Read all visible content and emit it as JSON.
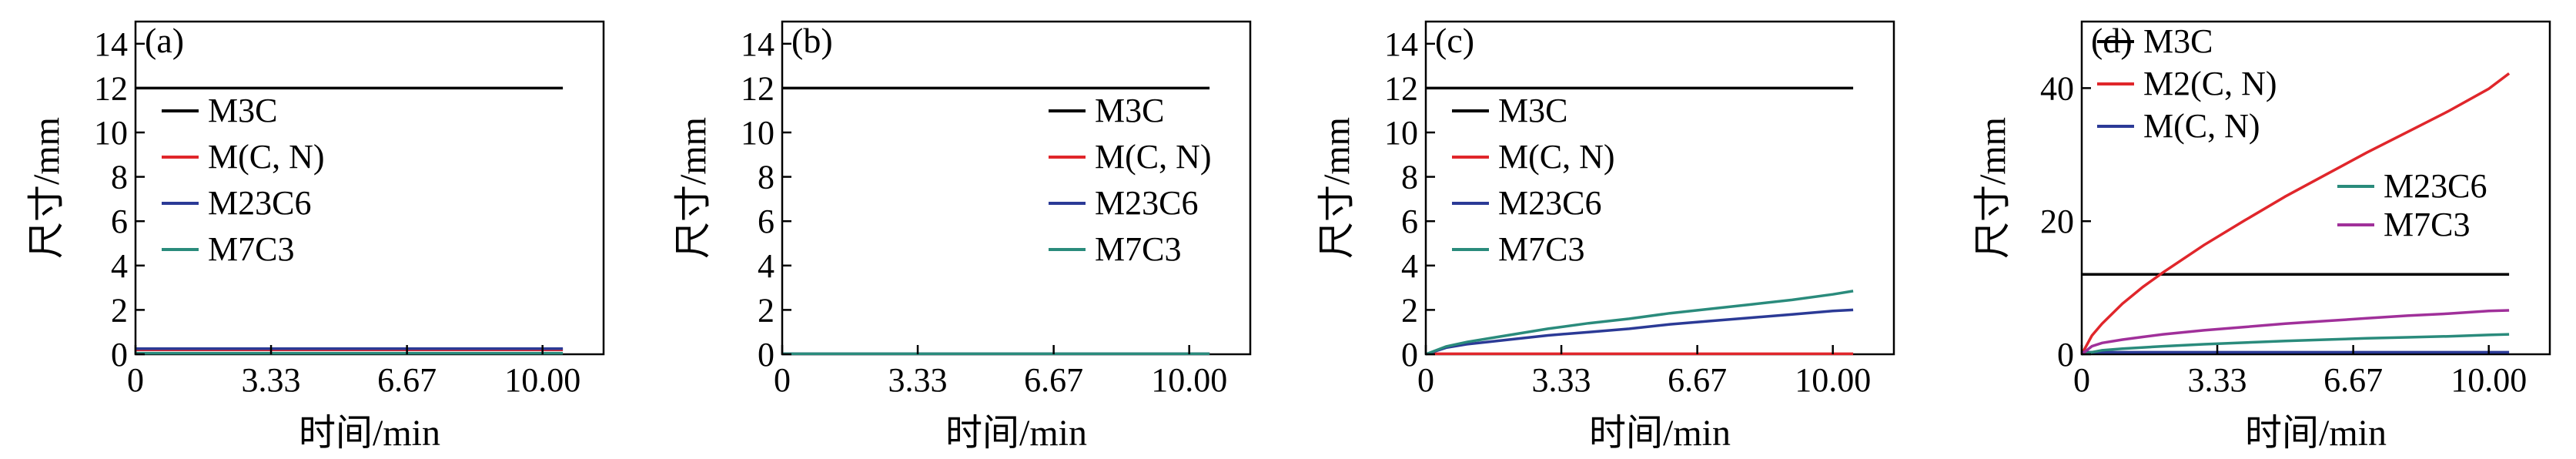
{
  "colors": {
    "M3C": "#000000",
    "M(C, N)": "#e0262b",
    "M2(C, N)": "#e0262b",
    "M23C6": "#2b3a96",
    "M7C3": "#2a8b7c",
    "M(C, N)_d": "#2b3a96",
    "M23C6_d": "#2a8b7c",
    "M7C3_d": "#a0309a"
  },
  "chart_data": [
    {
      "type": "line",
      "panel_label": "(a)",
      "xlabel": "时间/min",
      "ylabel": "尺寸/mm",
      "xlim": [
        0,
        11.5
      ],
      "ylim": [
        0,
        15
      ],
      "xticks": [
        0,
        3.33,
        6.67,
        10.0
      ],
      "xtick_labels": [
        "0",
        "3.33",
        "6.67",
        "10.00"
      ],
      "yticks": [
        0,
        2,
        4,
        6,
        8,
        10,
        12,
        14
      ],
      "ytick_labels": [
        "0",
        "2",
        "4",
        "6",
        "8",
        "10",
        "12",
        "14"
      ],
      "legend_position": "center-left",
      "series": [
        {
          "name": "M3C",
          "x": [
            0,
            10.5
          ],
          "values": [
            12,
            12
          ]
        },
        {
          "name": "M(C, N)",
          "x": [
            0,
            10.5
          ],
          "values": [
            0.2,
            0.2
          ]
        },
        {
          "name": "M23C6",
          "x": [
            0,
            10.5
          ],
          "values": [
            0.25,
            0.25
          ]
        },
        {
          "name": "M7C3",
          "x": [
            0,
            10.5
          ],
          "values": [
            0.05,
            0.05
          ]
        }
      ]
    },
    {
      "type": "line",
      "panel_label": "(b)",
      "xlabel": "时间/min",
      "ylabel": "尺寸/mm",
      "xlim": [
        0,
        11.5
      ],
      "ylim": [
        0,
        15
      ],
      "xticks": [
        0,
        3.33,
        6.67,
        10.0
      ],
      "xtick_labels": [
        "0",
        "3.33",
        "6.67",
        "10.00"
      ],
      "yticks": [
        0,
        2,
        4,
        6,
        8,
        10,
        12,
        14
      ],
      "ytick_labels": [
        "0",
        "2",
        "4",
        "6",
        "8",
        "10",
        "12",
        "14"
      ],
      "legend_position": "center-right",
      "series": [
        {
          "name": "M3C",
          "x": [
            0,
            10.5
          ],
          "values": [
            12,
            12
          ]
        },
        {
          "name": "M(C, N)",
          "x": [
            0,
            10.5
          ],
          "values": [
            0.02,
            0.02
          ]
        },
        {
          "name": "M23C6",
          "x": [
            0,
            10.5
          ],
          "values": [
            0.02,
            0.02
          ]
        },
        {
          "name": "M7C3",
          "x": [
            0,
            10.5
          ],
          "values": [
            0.02,
            0.02
          ]
        }
      ]
    },
    {
      "type": "line",
      "panel_label": "(c)",
      "xlabel": "时间/min",
      "ylabel": "尺寸/mm",
      "xlim": [
        0,
        11.5
      ],
      "ylim": [
        0,
        15
      ],
      "xticks": [
        0,
        3.33,
        6.67,
        10.0
      ],
      "xtick_labels": [
        "0",
        "3.33",
        "6.67",
        "10.00"
      ],
      "yticks": [
        0,
        2,
        4,
        6,
        8,
        10,
        12,
        14
      ],
      "ytick_labels": [
        "0",
        "2",
        "4",
        "6",
        "8",
        "10",
        "12",
        "14"
      ],
      "legend_position": "center-left",
      "series": [
        {
          "name": "M3C",
          "x": [
            0,
            10.5
          ],
          "values": [
            12,
            12
          ]
        },
        {
          "name": "M(C, N)",
          "x": [
            0,
            10.5
          ],
          "values": [
            0.02,
            0.02
          ]
        },
        {
          "name": "M23C6",
          "x": [
            0,
            0.5,
            1,
            2,
            3,
            4,
            5,
            6,
            7,
            8,
            9,
            10,
            10.5
          ],
          "values": [
            0,
            0.3,
            0.45,
            0.65,
            0.85,
            1.0,
            1.15,
            1.35,
            1.5,
            1.65,
            1.8,
            1.95,
            2.0
          ]
        },
        {
          "name": "M7C3",
          "x": [
            0,
            0.5,
            1,
            2,
            3,
            4,
            5,
            6,
            7,
            8,
            9,
            10,
            10.5
          ],
          "values": [
            0,
            0.35,
            0.55,
            0.85,
            1.15,
            1.4,
            1.6,
            1.85,
            2.05,
            2.25,
            2.45,
            2.7,
            2.85
          ]
        }
      ]
    },
    {
      "type": "line",
      "panel_label": "(d)",
      "xlabel": "时间/min",
      "ylabel": "尺寸/mm",
      "xlim": [
        0,
        11.5
      ],
      "ylim": [
        0,
        50
      ],
      "xticks": [
        0,
        3.33,
        6.67,
        10.0
      ],
      "xtick_labels": [
        "0",
        "3.33",
        "6.67",
        "10.00"
      ],
      "yticks": [
        0,
        20,
        40
      ],
      "ytick_labels": [
        "0",
        "20",
        "40"
      ],
      "legend_position": "top-left",
      "series": [
        {
          "name": "M3C",
          "x": [
            0,
            10.5
          ],
          "values": [
            12,
            12
          ]
        },
        {
          "name": "M2(C, N)",
          "x": [
            0,
            0.25,
            0.5,
            1,
            1.5,
            2,
            3,
            4,
            5,
            6,
            7,
            8,
            9,
            10,
            10.5
          ],
          "values": [
            0,
            2.8,
            4.6,
            7.6,
            10.1,
            12.3,
            16.4,
            20.1,
            23.7,
            27.0,
            30.3,
            33.4,
            36.5,
            39.9,
            42.2
          ]
        },
        {
          "name": "M(C, N)",
          "x": [
            0,
            10.5
          ],
          "values": [
            0.3,
            0.3
          ]
        },
        {
          "name": "M23C6",
          "x": [
            0,
            0.5,
            1,
            2,
            3,
            4,
            5,
            6,
            7,
            8,
            9,
            10,
            10.5
          ],
          "values": [
            0,
            0.6,
            0.85,
            1.2,
            1.5,
            1.75,
            2.0,
            2.2,
            2.4,
            2.55,
            2.7,
            2.9,
            3.0
          ]
        },
        {
          "name": "M7C3",
          "x": [
            0,
            0.25,
            0.5,
            1,
            1.5,
            2,
            3,
            4,
            5,
            6,
            7,
            8,
            9,
            10,
            10.5
          ],
          "values": [
            0,
            1.2,
            1.7,
            2.2,
            2.6,
            3.0,
            3.6,
            4.1,
            4.6,
            5.0,
            5.4,
            5.8,
            6.1,
            6.5,
            6.6
          ]
        }
      ]
    }
  ]
}
